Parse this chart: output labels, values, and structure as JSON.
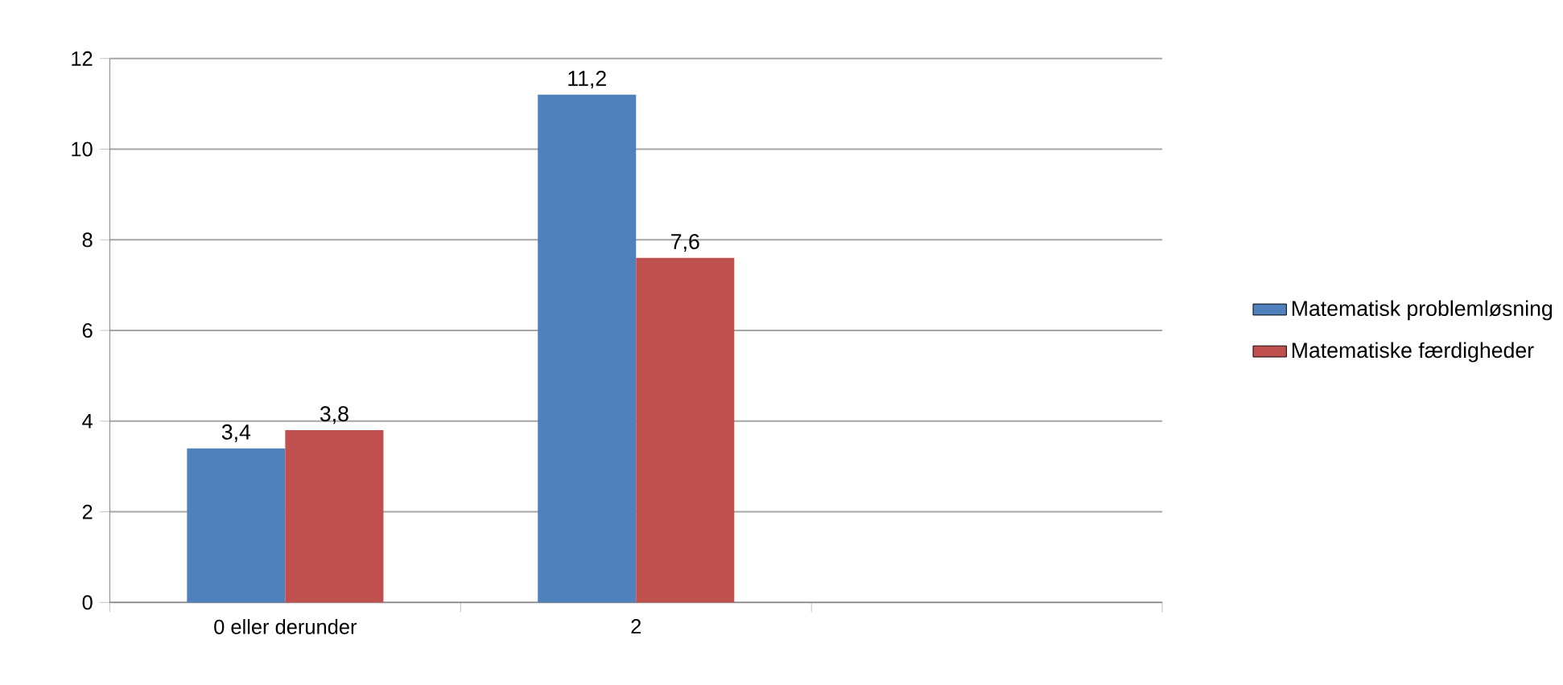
{
  "chart_data": {
    "type": "bar",
    "categories": [
      "0 eller derunder",
      "2",
      null
    ],
    "series": [
      {
        "name": "Matematisk problemløsning",
        "color": "#4f81bd",
        "values": [
          3.4,
          11.2,
          null
        ],
        "value_labels": [
          "3,4",
          "11,2",
          null
        ]
      },
      {
        "name": "Matematiske færdigheder",
        "color": "#c0504d",
        "values": [
          3.8,
          7.6,
          null
        ],
        "value_labels": [
          "3,8",
          "7,6",
          null
        ]
      }
    ],
    "ylim": [
      0,
      12
    ],
    "yticks": [
      0,
      2,
      4,
      6,
      8,
      10,
      12
    ],
    "grid": "y",
    "legend": "right"
  }
}
